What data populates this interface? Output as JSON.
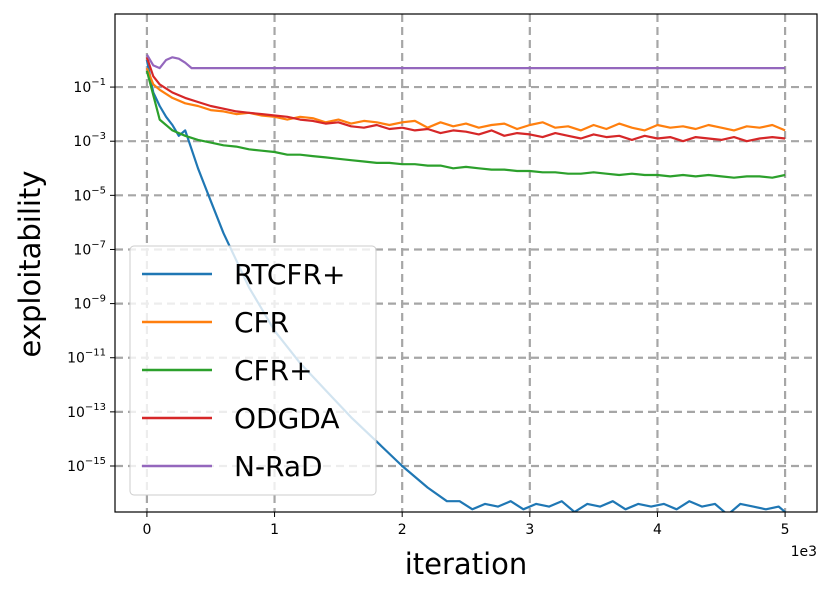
{
  "chart_data": {
    "type": "line",
    "title": "",
    "xlabel": "iteration",
    "ylabel": "exploitability",
    "x_offset_label": "1e3",
    "xlim": [
      -0.25,
      5.25
    ],
    "ylim_log10": [
      -16.7,
      1.7
    ],
    "yscale": "log",
    "grid": true,
    "legend_position": "lower-left",
    "x_ticks": [
      {
        "value": 0,
        "label": "0"
      },
      {
        "value": 1,
        "label": "1"
      },
      {
        "value": 2,
        "label": "2"
      },
      {
        "value": 3,
        "label": "3"
      },
      {
        "value": 4,
        "label": "4"
      },
      {
        "value": 5,
        "label": "5"
      }
    ],
    "y_ticks": [
      {
        "exp": -1,
        "base": "10",
        "sup": "−1"
      },
      {
        "exp": -3,
        "base": "10",
        "sup": "−3"
      },
      {
        "exp": -5,
        "base": "10",
        "sup": "−5"
      },
      {
        "exp": -7,
        "base": "10",
        "sup": "−7"
      },
      {
        "exp": -9,
        "base": "10",
        "sup": "−9"
      },
      {
        "exp": -11,
        "base": "10",
        "sup": "−11"
      },
      {
        "exp": -13,
        "base": "10",
        "sup": "−13"
      },
      {
        "exp": -15,
        "base": "10",
        "sup": "−15"
      }
    ],
    "series": [
      {
        "name": "RTCFR+",
        "color": "#1f77b4",
        "x": [
          0,
          0.05,
          0.1,
          0.15,
          0.2,
          0.25,
          0.3,
          0.35,
          0.4,
          0.45,
          0.5,
          0.6,
          0.7,
          0.8,
          0.9,
          1.0,
          1.2,
          1.4,
          1.6,
          1.8,
          2.0,
          2.2,
          2.35,
          2.45,
          2.55,
          2.65,
          2.75,
          2.85,
          2.95,
          3.05,
          3.15,
          3.25,
          3.35,
          3.45,
          3.55,
          3.65,
          3.75,
          3.85,
          3.95,
          4.05,
          4.15,
          4.25,
          4.35,
          4.45,
          4.55,
          4.65,
          4.75,
          4.85,
          4.95,
          5.0
        ],
        "log10_values": [
          0.0,
          -1.2,
          -1.7,
          -2.1,
          -2.4,
          -2.8,
          -2.6,
          -3.3,
          -4.0,
          -4.6,
          -5.2,
          -6.4,
          -7.4,
          -8.4,
          -9.2,
          -10.0,
          -11.2,
          -12.2,
          -13.2,
          -14.1,
          -15.0,
          -15.8,
          -16.3,
          -16.3,
          -16.6,
          -16.4,
          -16.5,
          -16.3,
          -16.6,
          -16.4,
          -16.5,
          -16.3,
          -16.7,
          -16.4,
          -16.5,
          -16.3,
          -16.6,
          -16.4,
          -16.5,
          -16.4,
          -16.6,
          -16.3,
          -16.5,
          -16.4,
          -16.8,
          -16.4,
          -16.5,
          -16.6,
          -16.5,
          -16.7
        ]
      },
      {
        "name": "CFR",
        "color": "#ff7f0e",
        "x": [
          0,
          0.05,
          0.1,
          0.2,
          0.3,
          0.4,
          0.5,
          0.6,
          0.7,
          0.8,
          0.9,
          1.0,
          1.1,
          1.2,
          1.3,
          1.4,
          1.5,
          1.6,
          1.7,
          1.8,
          1.9,
          2.0,
          2.1,
          2.2,
          2.3,
          2.4,
          2.5,
          2.6,
          2.7,
          2.8,
          2.9,
          3.0,
          3.1,
          3.2,
          3.3,
          3.4,
          3.5,
          3.6,
          3.7,
          3.8,
          3.9,
          4.0,
          4.1,
          4.2,
          4.3,
          4.4,
          4.5,
          4.6,
          4.7,
          4.8,
          4.9,
          5.0
        ],
        "log10_values": [
          -0.3,
          -0.9,
          -1.1,
          -1.4,
          -1.6,
          -1.7,
          -1.85,
          -1.9,
          -2.0,
          -1.95,
          -2.05,
          -2.1,
          -2.2,
          -2.1,
          -2.15,
          -2.3,
          -2.2,
          -2.35,
          -2.25,
          -2.3,
          -2.4,
          -2.3,
          -2.25,
          -2.5,
          -2.3,
          -2.45,
          -2.35,
          -2.5,
          -2.4,
          -2.35,
          -2.55,
          -2.4,
          -2.3,
          -2.5,
          -2.45,
          -2.6,
          -2.4,
          -2.55,
          -2.35,
          -2.5,
          -2.6,
          -2.4,
          -2.5,
          -2.45,
          -2.55,
          -2.4,
          -2.5,
          -2.6,
          -2.45,
          -2.5,
          -2.4,
          -2.6
        ]
      },
      {
        "name": "CFR+",
        "color": "#2ca02c",
        "x": [
          0,
          0.05,
          0.1,
          0.2,
          0.3,
          0.4,
          0.5,
          0.6,
          0.7,
          0.8,
          0.9,
          1.0,
          1.1,
          1.2,
          1.3,
          1.4,
          1.5,
          1.6,
          1.7,
          1.8,
          1.9,
          2.0,
          2.1,
          2.2,
          2.3,
          2.4,
          2.5,
          2.6,
          2.7,
          2.8,
          2.9,
          3.0,
          3.1,
          3.2,
          3.3,
          3.4,
          3.5,
          3.6,
          3.7,
          3.8,
          3.9,
          4.0,
          4.1,
          4.2,
          4.3,
          4.4,
          4.5,
          4.6,
          4.7,
          4.8,
          4.9,
          5.0
        ],
        "log10_values": [
          -0.4,
          -1.3,
          -2.2,
          -2.6,
          -2.8,
          -2.95,
          -3.05,
          -3.15,
          -3.2,
          -3.3,
          -3.35,
          -3.4,
          -3.5,
          -3.5,
          -3.55,
          -3.6,
          -3.65,
          -3.7,
          -3.75,
          -3.8,
          -3.8,
          -3.85,
          -3.85,
          -3.9,
          -3.9,
          -4.0,
          -3.95,
          -4.0,
          -4.05,
          -4.05,
          -4.1,
          -4.1,
          -4.15,
          -4.15,
          -4.2,
          -4.2,
          -4.15,
          -4.2,
          -4.25,
          -4.2,
          -4.25,
          -4.25,
          -4.3,
          -4.25,
          -4.3,
          -4.25,
          -4.3,
          -4.35,
          -4.3,
          -4.3,
          -4.35,
          -4.25
        ]
      },
      {
        "name": "ODGDA",
        "color": "#d62728",
        "x": [
          0,
          0.05,
          0.1,
          0.2,
          0.3,
          0.4,
          0.5,
          0.6,
          0.7,
          0.8,
          0.9,
          1.0,
          1.1,
          1.2,
          1.3,
          1.4,
          1.5,
          1.6,
          1.7,
          1.8,
          1.9,
          2.0,
          2.1,
          2.2,
          2.3,
          2.4,
          2.5,
          2.6,
          2.7,
          2.8,
          2.9,
          3.0,
          3.1,
          3.2,
          3.3,
          3.4,
          3.5,
          3.6,
          3.7,
          3.8,
          3.9,
          4.0,
          4.1,
          4.2,
          4.3,
          4.4,
          4.5,
          4.6,
          4.7,
          4.8,
          4.9,
          5.0
        ],
        "log10_values": [
          0.1,
          -0.6,
          -0.9,
          -1.2,
          -1.4,
          -1.55,
          -1.7,
          -1.8,
          -1.9,
          -1.95,
          -2.0,
          -2.05,
          -2.1,
          -2.2,
          -2.25,
          -2.35,
          -2.3,
          -2.45,
          -2.5,
          -2.4,
          -2.55,
          -2.5,
          -2.6,
          -2.55,
          -2.7,
          -2.6,
          -2.65,
          -2.75,
          -2.6,
          -2.8,
          -2.7,
          -2.75,
          -2.85,
          -2.7,
          -2.8,
          -2.9,
          -2.75,
          -2.85,
          -2.8,
          -2.95,
          -2.8,
          -2.9,
          -2.85,
          -3.0,
          -2.85,
          -2.9,
          -2.95,
          -2.85,
          -3.0,
          -2.9,
          -2.85,
          -2.9
        ]
      },
      {
        "name": "N-RaD",
        "color": "#9467bd",
        "x": [
          0,
          0.05,
          0.1,
          0.15,
          0.2,
          0.25,
          0.3,
          0.35,
          0.4,
          0.5,
          1.0,
          1.5,
          2.0,
          2.5,
          3.0,
          3.5,
          4.0,
          4.5,
          5.0
        ],
        "log10_values": [
          0.2,
          -0.2,
          -0.3,
          0.0,
          0.1,
          0.05,
          -0.1,
          -0.3,
          -0.3,
          -0.3,
          -0.3,
          -0.3,
          -0.3,
          -0.3,
          -0.3,
          -0.3,
          -0.3,
          -0.3,
          -0.3
        ]
      }
    ]
  }
}
